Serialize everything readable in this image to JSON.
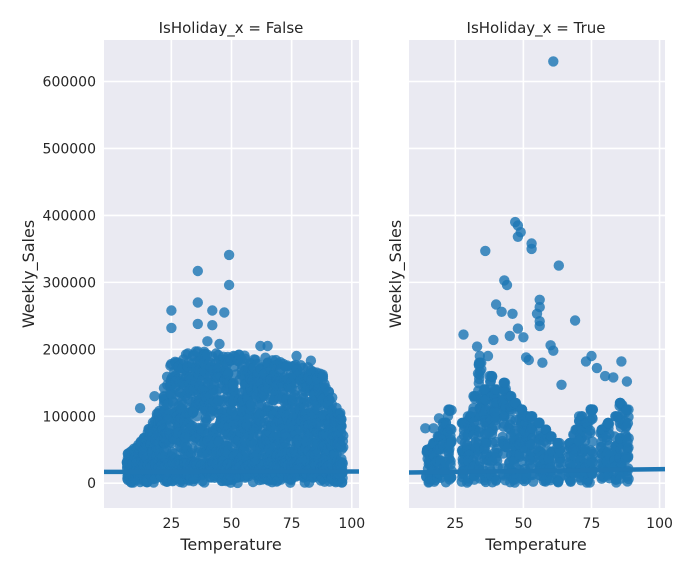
{
  "chart_data": [
    {
      "type": "scatter",
      "title": "IsHoliday_x = False",
      "xlabel": "Temperature",
      "ylabel": "Weekly_Sales",
      "xlim": [
        -3,
        103
      ],
      "ylim": [
        -37000,
        662000
      ],
      "xticks": [
        25,
        50,
        75,
        100
      ],
      "yticks": [
        0,
        100000,
        200000,
        300000,
        400000,
        500000,
        600000
      ],
      "grid": true,
      "point_color": "#1f77b4",
      "band": {
        "x_start": 7,
        "x_end": 97,
        "center": 20000,
        "spread": 12000
      },
      "envelope": [
        [
          7,
          45000
        ],
        [
          10,
          55000
        ],
        [
          15,
          80000
        ],
        [
          20,
          110000
        ],
        [
          23,
          150000
        ],
        [
          25,
          185000
        ],
        [
          30,
          195000
        ],
        [
          40,
          200000
        ],
        [
          50,
          195000
        ],
        [
          60,
          190000
        ],
        [
          70,
          185000
        ],
        [
          80,
          180000
        ],
        [
          85,
          175000
        ],
        [
          90,
          150000
        ],
        [
          94,
          110000
        ],
        [
          97,
          100000
        ]
      ],
      "outliers": [
        [
          49,
          341000
        ],
        [
          36,
          317000
        ],
        [
          49,
          296000
        ],
        [
          25,
          258000
        ],
        [
          36,
          270000
        ],
        [
          42,
          258000
        ],
        [
          47,
          255000
        ],
        [
          25,
          232000
        ],
        [
          36,
          238000
        ],
        [
          42,
          236000
        ],
        [
          40,
          212000
        ],
        [
          45,
          208000
        ],
        [
          62,
          205000
        ],
        [
          65,
          205000
        ],
        [
          18,
          130000
        ],
        [
          12,
          112000
        ],
        [
          20,
          108000
        ],
        [
          30,
          185000
        ],
        [
          77,
          190000
        ],
        [
          83,
          183000
        ]
      ],
      "regression": {
        "x": [
          -3,
          103
        ],
        "y": [
          17000,
          17500
        ]
      }
    },
    {
      "type": "scatter",
      "title": "IsHoliday_x = True",
      "xlabel": "Temperature",
      "ylabel": "Weekly_Sales",
      "xlim": [
        8,
        102
      ],
      "ylim": [
        -37000,
        662000
      ],
      "xticks": [
        25,
        50,
        75,
        100
      ],
      "yticks": [
        0,
        100000,
        200000,
        300000,
        400000,
        500000,
        600000
      ],
      "show_ytick_labels": false,
      "grid": true,
      "point_color": "#1f77b4",
      "columns": [
        [
          15,
          50000
        ],
        [
          17,
          60000
        ],
        [
          19,
          70000
        ],
        [
          21,
          90000
        ],
        [
          23,
          110000
        ],
        [
          28,
          90000
        ],
        [
          30,
          100000
        ],
        [
          32,
          130000
        ],
        [
          34,
          180000
        ],
        [
          36,
          140000
        ],
        [
          38,
          160000
        ],
        [
          40,
          140000
        ],
        [
          43,
          150000
        ],
        [
          45,
          130000
        ],
        [
          47,
          120000
        ],
        [
          49,
          110000
        ],
        [
          51,
          100000
        ],
        [
          53,
          100000
        ],
        [
          56,
          90000
        ],
        [
          58,
          80000
        ],
        [
          60,
          70000
        ],
        [
          63,
          60000
        ],
        [
          67,
          60000
        ],
        [
          69,
          80000
        ],
        [
          71,
          100000
        ],
        [
          73,
          90000
        ],
        [
          75,
          110000
        ],
        [
          79,
          80000
        ],
        [
          81,
          90000
        ],
        [
          84,
          100000
        ],
        [
          86,
          120000
        ],
        [
          88,
          110000
        ]
      ],
      "outliers": [
        [
          61,
          630000
        ],
        [
          47,
          390000
        ],
        [
          48,
          385000
        ],
        [
          49,
          375000
        ],
        [
          48,
          368000
        ],
        [
          53,
          358000
        ],
        [
          53,
          350000
        ],
        [
          36,
          347000
        ],
        [
          63,
          325000
        ],
        [
          43,
          303000
        ],
        [
          44,
          296000
        ],
        [
          56,
          274000
        ],
        [
          56,
          263000
        ],
        [
          40,
          267000
        ],
        [
          42,
          256000
        ],
        [
          46,
          253000
        ],
        [
          55,
          253000
        ],
        [
          56,
          242000
        ],
        [
          56,
          235000
        ],
        [
          69,
          243000
        ],
        [
          48,
          231000
        ],
        [
          50,
          218000
        ],
        [
          28,
          222000
        ],
        [
          45,
          220000
        ],
        [
          39,
          214000
        ],
        [
          33,
          204000
        ],
        [
          60,
          206000
        ],
        [
          61,
          198000
        ],
        [
          34,
          190000
        ],
        [
          37,
          190000
        ],
        [
          51,
          188000
        ],
        [
          52,
          184000
        ],
        [
          75,
          190000
        ],
        [
          73,
          182000
        ],
        [
          86,
          182000
        ],
        [
          57,
          180000
        ],
        [
          64,
          147000
        ],
        [
          77,
          172000
        ],
        [
          80,
          160000
        ],
        [
          83,
          158000
        ],
        [
          88,
          152000
        ],
        [
          19,
          97000
        ],
        [
          17,
          82000
        ],
        [
          14,
          82000
        ]
      ],
      "regression": {
        "x": [
          8,
          102
        ],
        "y": [
          16000,
          21000
        ]
      }
    }
  ]
}
